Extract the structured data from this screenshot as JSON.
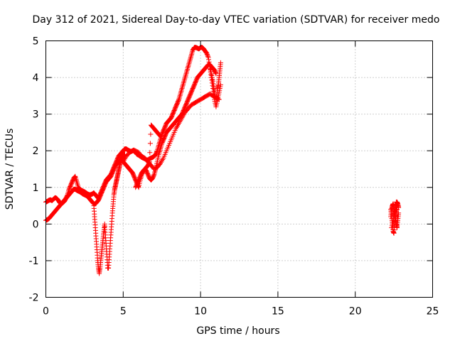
{
  "chart_data": {
    "type": "scatter",
    "title": "Day 312 of 2021, Sidereal Day-to-day VTEC variation (SDTVAR) for receiver medo",
    "xlabel": "GPS time / hours",
    "ylabel": "SDTVAR / TECUs",
    "xlim": [
      0,
      25
    ],
    "ylim": [
      -2,
      5
    ],
    "xticks": [
      0,
      5,
      10,
      15,
      20,
      25
    ],
    "yticks": [
      -2,
      -1,
      0,
      1,
      2,
      3,
      4,
      5
    ],
    "grid": true,
    "marker": "plus",
    "color": "#ff0000",
    "series": [
      {
        "x": [
          0.0,
          0.1,
          0.2,
          0.3,
          0.4,
          0.5,
          0.6,
          0.7,
          0.8,
          0.9,
          1.0,
          1.1,
          1.2,
          1.3,
          1.4,
          1.5,
          1.6,
          1.7,
          1.8,
          1.9,
          2.0,
          2.1,
          2.2,
          2.3,
          2.4,
          2.5,
          2.6,
          2.7,
          2.8,
          2.9,
          3.0,
          3.1,
          3.2,
          3.3,
          3.4,
          3.5,
          3.6,
          3.7,
          3.8,
          3.9,
          4.0,
          4.1,
          4.2,
          4.3,
          4.4,
          4.5,
          4.6,
          4.7,
          4.8,
          4.9,
          5.0,
          5.1,
          5.2,
          5.3,
          5.4,
          5.5,
          5.6,
          5.7,
          5.8,
          5.9,
          6.0,
          6.1,
          6.2,
          6.3,
          6.4,
          6.5,
          6.6,
          6.7,
          6.8,
          6.9,
          7.0,
          7.1,
          7.2,
          7.3,
          7.4,
          7.5,
          7.6,
          7.7,
          7.8,
          7.9,
          8.0,
          8.1,
          8.2,
          8.3,
          8.4,
          8.5,
          8.6,
          8.7,
          8.8,
          8.9,
          9.0,
          9.1,
          9.2,
          9.3,
          9.4,
          9.5,
          9.6,
          9.7,
          9.8,
          9.9,
          10.0,
          10.1,
          10.2,
          10.3,
          10.4,
          10.5,
          10.6,
          10.7,
          10.8,
          10.9,
          11.0,
          11.1,
          11.2,
          11.3
        ],
        "y": [
          0.6,
          0.62,
          0.65,
          0.66,
          0.64,
          0.68,
          0.72,
          0.7,
          0.65,
          0.58,
          0.55,
          0.58,
          0.62,
          0.7,
          0.8,
          0.95,
          1.05,
          1.15,
          1.25,
          1.3,
          1.15,
          1.0,
          0.95,
          0.92,
          0.9,
          0.88,
          0.85,
          0.82,
          0.8,
          0.8,
          0.82,
          0.85,
          0.8,
          0.75,
          0.7,
          0.8,
          0.9,
          1.0,
          1.1,
          1.2,
          1.25,
          1.3,
          1.35,
          1.45,
          1.55,
          1.65,
          1.75,
          1.85,
          1.9,
          1.95,
          2.0,
          2.05,
          2.05,
          2.02,
          2.0,
          1.98,
          2.0,
          2.02,
          1.95,
          1.9,
          1.88,
          1.85,
          1.82,
          1.8,
          1.78,
          1.75,
          1.75,
          1.78,
          1.8,
          1.82,
          1.85,
          1.9,
          2.0,
          2.15,
          2.3,
          2.45,
          2.55,
          2.65,
          2.75,
          2.8,
          2.85,
          2.9,
          3.0,
          3.1,
          3.2,
          3.3,
          3.4,
          3.55,
          3.7,
          3.85,
          4.0,
          4.15,
          4.3,
          4.45,
          4.6,
          4.75,
          4.82,
          4.82,
          4.8,
          4.78,
          4.82,
          4.82,
          4.78,
          4.72,
          4.66,
          4.55,
          4.3,
          4.0,
          3.7,
          3.4,
          3.2,
          3.4,
          3.6,
          3.8
        ]
      },
      {
        "x": [
          0.0,
          0.1,
          0.2,
          0.3,
          0.4,
          0.5,
          0.6,
          0.7,
          0.8,
          0.9,
          1.0,
          1.1,
          1.2,
          1.3,
          1.4,
          1.5,
          1.6,
          1.7,
          1.8,
          1.9,
          2.0,
          2.1,
          2.2,
          2.3,
          2.4,
          2.5,
          2.6,
          2.7,
          2.8,
          2.9,
          3.0,
          3.1,
          3.2,
          3.3,
          3.4,
          3.5,
          3.6,
          3.7,
          3.8,
          3.9,
          4.0,
          4.1,
          4.2,
          4.3,
          4.4,
          4.5,
          4.6,
          4.7,
          4.8,
          4.9,
          5.0,
          5.1,
          5.2,
          5.3,
          5.4,
          5.5,
          5.6,
          5.7,
          5.8,
          5.9,
          6.0,
          6.1,
          6.2,
          6.3,
          6.4,
          6.5,
          6.6,
          6.7,
          6.8,
          6.9,
          7.0,
          7.1,
          7.2,
          7.3,
          7.4,
          7.5,
          7.6,
          7.7,
          7.8,
          7.9,
          8.0,
          8.1,
          8.2,
          8.3,
          8.4,
          8.5,
          8.6,
          8.7,
          8.8,
          8.9,
          9.0,
          9.1,
          9.2,
          9.3,
          9.4,
          9.5,
          9.6,
          9.7,
          9.8,
          9.9,
          10.0,
          10.1,
          10.2,
          10.3,
          10.4,
          10.5,
          10.6,
          10.7,
          10.8,
          10.9,
          11.0
        ],
        "y": [
          0.1,
          0.12,
          0.15,
          0.2,
          0.25,
          0.3,
          0.35,
          0.4,
          0.45,
          0.5,
          0.55,
          0.6,
          0.65,
          0.7,
          0.75,
          0.8,
          0.85,
          0.9,
          0.95,
          0.95,
          0.92,
          0.9,
          0.88,
          0.85,
          0.82,
          0.8,
          0.78,
          0.75,
          0.7,
          0.65,
          0.6,
          0.55,
          0.55,
          0.6,
          0.65,
          0.75,
          0.85,
          0.95,
          1.05,
          1.15,
          1.2,
          1.25,
          1.3,
          1.4,
          1.5,
          1.6,
          1.65,
          1.7,
          1.75,
          1.75,
          1.7,
          1.65,
          1.6,
          1.55,
          1.5,
          1.45,
          1.4,
          1.3,
          1.2,
          1.1,
          1.0,
          1.2,
          1.35,
          1.45,
          1.5,
          1.45,
          1.35,
          1.25,
          1.2,
          1.25,
          1.35,
          1.5,
          1.7,
          1.9,
          2.05,
          2.2,
          2.3,
          2.4,
          2.5,
          2.55,
          2.6,
          2.65,
          2.7,
          2.75,
          2.8,
          2.85,
          2.9,
          2.95,
          3.0,
          3.1,
          3.2,
          3.3,
          3.4,
          3.5,
          3.6,
          3.7,
          3.8,
          3.9,
          4.0,
          4.05,
          4.1,
          4.15,
          4.2,
          4.25,
          4.3,
          4.35,
          4.35,
          4.3,
          4.25,
          4.2,
          4.1
        ]
      },
      {
        "x": [
          3.1,
          3.15,
          3.2,
          3.25,
          3.3,
          3.35,
          3.4,
          3.45,
          3.5,
          3.55,
          3.6,
          3.65,
          3.7,
          3.75,
          3.8,
          3.85,
          3.9,
          3.95,
          4.0,
          4.05,
          4.1,
          4.15,
          4.2,
          4.25,
          4.3,
          4.35,
          4.4,
          4.45,
          4.5,
          4.55,
          4.6,
          4.65,
          4.7,
          4.75,
          4.8,
          4.85,
          4.9,
          4.95,
          5.0,
          5.05,
          5.1
        ],
        "y": [
          0.5,
          0.2,
          -0.1,
          -0.4,
          -0.7,
          -1.0,
          -1.2,
          -1.35,
          -1.2,
          -1.0,
          -0.8,
          -0.6,
          -0.4,
          -0.2,
          0.0,
          -0.3,
          -0.6,
          -0.9,
          -1.2,
          -1.2,
          -0.9,
          -0.6,
          -0.3,
          0.0,
          0.3,
          0.55,
          0.8,
          0.95,
          1.05,
          1.15,
          1.25,
          1.35,
          1.45,
          1.55,
          1.65,
          1.72,
          1.78,
          1.82,
          1.85,
          1.88,
          1.9
        ]
      },
      {
        "x": [
          5.0,
          5.2,
          5.4,
          5.6,
          5.8,
          6.0,
          6.2,
          6.4,
          6.6,
          6.8,
          7.0,
          7.2,
          7.4,
          7.6,
          7.8,
          8.0,
          8.2,
          8.4,
          8.6,
          8.8,
          9.0,
          9.2,
          9.4,
          9.6,
          9.8,
          10.0,
          10.2,
          10.4,
          10.6,
          10.8,
          11.0,
          11.2
        ],
        "y": [
          1.7,
          1.85,
          1.95,
          2.0,
          2.0,
          1.95,
          1.85,
          1.8,
          1.7,
          1.6,
          1.5,
          1.55,
          1.65,
          1.8,
          2.0,
          2.2,
          2.4,
          2.6,
          2.75,
          2.9,
          3.05,
          3.15,
          3.25,
          3.3,
          3.35,
          3.4,
          3.45,
          3.5,
          3.55,
          3.5,
          3.45,
          3.4
        ]
      },
      {
        "x": [
          5.8,
          5.9,
          6.0,
          6.1,
          6.2,
          6.3,
          6.4,
          6.5,
          6.6,
          6.7,
          6.8,
          6.9,
          7.0,
          7.1,
          7.2,
          7.3,
          7.4
        ],
        "y": [
          1.0,
          1.1,
          1.2,
          1.3,
          1.4,
          1.45,
          1.5,
          1.55,
          1.6,
          1.7,
          2.7,
          2.65,
          2.6,
          2.55,
          2.5,
          2.45,
          2.4
        ]
      },
      {
        "x": [
          10.6,
          10.7,
          10.8,
          10.9,
          11.0,
          11.05,
          11.1,
          11.15,
          11.2,
          11.25,
          11.3
        ],
        "y": [
          4.3,
          4.1,
          3.9,
          3.6,
          3.4,
          3.5,
          3.7,
          3.8,
          4.0,
          4.2,
          4.4
        ]
      },
      {
        "x": [
          22.3,
          22.35,
          22.4,
          22.45,
          22.5,
          22.55,
          22.6,
          22.65,
          22.7,
          22.75,
          22.8,
          22.3,
          22.35,
          22.4,
          22.45,
          22.5,
          22.55,
          22.6,
          22.65,
          22.7,
          22.75,
          22.8,
          22.35,
          22.45,
          22.55,
          22.65,
          22.75
        ],
        "y": [
          0.4,
          0.2,
          0.0,
          -0.2,
          -0.25,
          0.1,
          0.3,
          0.5,
          0.6,
          0.55,
          0.45,
          0.2,
          0.4,
          0.5,
          0.55,
          0.45,
          0.3,
          0.15,
          0.0,
          -0.1,
          0.1,
          0.3,
          -0.1,
          0.1,
          0.35,
          0.6,
          0.2
        ]
      }
    ]
  }
}
